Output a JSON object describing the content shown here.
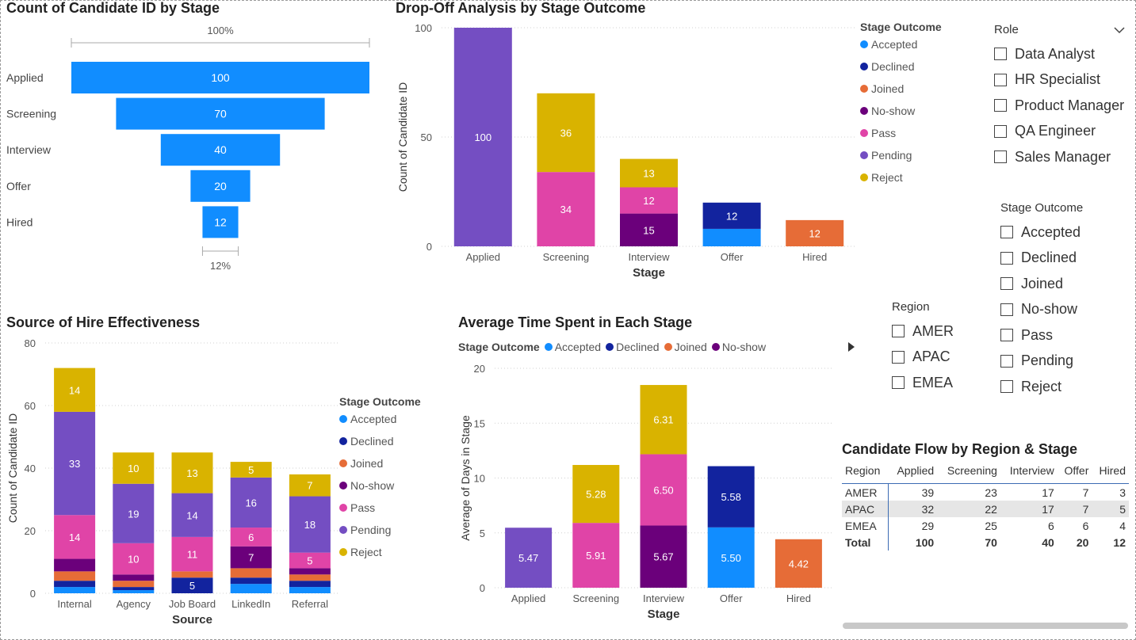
{
  "colors": {
    "Accepted": "#118DFF",
    "Declined": "#12239E",
    "Joined": "#E66C37",
    "No-show": "#6B007B",
    "Pass": "#E044A7",
    "Pending": "#744EC2",
    "Reject": "#D9B300",
    "funnel": "#118DFF"
  },
  "funnel": {
    "title": "Count of Candidate ID by Stage",
    "top_pct": "100%",
    "bottom_pct": "12%",
    "stages": [
      "Applied",
      "Screening",
      "Interview",
      "Offer",
      "Hired"
    ],
    "values": [
      100,
      70,
      40,
      20,
      12
    ]
  },
  "legend": {
    "title": "Stage Outcome",
    "items": [
      "Accepted",
      "Declined",
      "Joined",
      "No-show",
      "Pass",
      "Pending",
      "Reject"
    ]
  },
  "slicers": {
    "role": {
      "title": "Role",
      "options": [
        "Data Analyst",
        "HR Specialist",
        "Product Manager",
        "QA Engineer",
        "Sales Manager"
      ]
    },
    "stage_outcome": {
      "title": "Stage Outcome",
      "options": [
        "Accepted",
        "Declined",
        "Joined",
        "No-show",
        "Pass",
        "Pending",
        "Reject"
      ]
    },
    "region": {
      "title": "Region",
      "options": [
        "AMER",
        "APAC",
        "EMEA"
      ]
    }
  },
  "chart_data": [
    {
      "type": "bar",
      "stacked": true,
      "title": "Drop-Off Analysis by Stage Outcome",
      "xlabel": "Stage",
      "ylabel": "Count of Candidate ID",
      "ylim": [
        0,
        100
      ],
      "yticks": [
        0,
        50,
        100
      ],
      "categories": [
        "Applied",
        "Screening",
        "Interview",
        "Offer",
        "Hired"
      ],
      "series": [
        {
          "name": "Accepted",
          "values": [
            0,
            0,
            0,
            8,
            0
          ],
          "labels": [
            "",
            "",
            "",
            "",
            ""
          ]
        },
        {
          "name": "Declined",
          "values": [
            0,
            0,
            0,
            12,
            0
          ],
          "labels": [
            "",
            "",
            "",
            "12",
            ""
          ]
        },
        {
          "name": "Joined",
          "values": [
            0,
            0,
            0,
            0,
            12
          ],
          "labels": [
            "",
            "",
            "",
            "",
            "12"
          ]
        },
        {
          "name": "No-show",
          "values": [
            0,
            0,
            15,
            0,
            0
          ],
          "labels": [
            "",
            "",
            "15",
            "",
            ""
          ]
        },
        {
          "name": "Pass",
          "values": [
            0,
            34,
            12,
            0,
            0
          ],
          "labels": [
            "",
            "34",
            "12",
            "",
            ""
          ]
        },
        {
          "name": "Pending",
          "values": [
            100,
            0,
            0,
            0,
            0
          ],
          "labels": [
            "100",
            "",
            "",
            "",
            ""
          ]
        },
        {
          "name": "Reject",
          "values": [
            0,
            36,
            13,
            0,
            0
          ],
          "labels": [
            "",
            "36",
            "13",
            "",
            ""
          ]
        }
      ],
      "legend": "right"
    },
    {
      "type": "bar",
      "stacked": true,
      "title": "Source of Hire Effectiveness",
      "xlabel": "Source",
      "ylabel": "Count of Candidate ID",
      "ylim": [
        0,
        80
      ],
      "yticks": [
        0,
        20,
        40,
        60,
        80
      ],
      "categories": [
        "Internal",
        "Agency",
        "Job Board",
        "LinkedIn",
        "Referral"
      ],
      "series": [
        {
          "name": "Accepted",
          "values": [
            2,
            1,
            0,
            3,
            2
          ],
          "labels": [
            "",
            "",
            "",
            "",
            ""
          ]
        },
        {
          "name": "Declined",
          "values": [
            2,
            1,
            5,
            2,
            2
          ],
          "labels": [
            "",
            "",
            "5",
            "",
            ""
          ]
        },
        {
          "name": "Joined",
          "values": [
            3,
            2,
            2,
            3,
            2
          ],
          "labels": [
            "",
            "",
            "",
            "",
            ""
          ]
        },
        {
          "name": "No-show",
          "values": [
            4,
            2,
            0,
            7,
            2
          ],
          "labels": [
            "",
            "",
            "",
            "7",
            ""
          ]
        },
        {
          "name": "Pass",
          "values": [
            14,
            10,
            11,
            6,
            5
          ],
          "labels": [
            "14",
            "10",
            "11",
            "6",
            "5"
          ]
        },
        {
          "name": "Pending",
          "values": [
            33,
            19,
            14,
            16,
            18
          ],
          "labels": [
            "33",
            "19",
            "14",
            "16",
            "18"
          ]
        },
        {
          "name": "Reject",
          "values": [
            14,
            10,
            13,
            5,
            7
          ],
          "labels": [
            "14",
            "10",
            "13",
            "5",
            "7"
          ]
        }
      ],
      "legend": "right"
    },
    {
      "type": "bar",
      "stacked": true,
      "title": "Average Time Spent in Each Stage",
      "xlabel": "Stage",
      "ylabel": "Average of Days in Stage",
      "ylim": [
        0,
        20
      ],
      "yticks": [
        0,
        5,
        10,
        15,
        20
      ],
      "categories": [
        "Applied",
        "Screening",
        "Interview",
        "Offer",
        "Hired"
      ],
      "series": [
        {
          "name": "Accepted",
          "values": [
            0,
            0,
            0,
            5.5,
            0
          ],
          "labels": [
            "",
            "",
            "",
            "5.50",
            ""
          ]
        },
        {
          "name": "Declined",
          "values": [
            0,
            0,
            0,
            5.58,
            0
          ],
          "labels": [
            "",
            "",
            "",
            "5.58",
            ""
          ]
        },
        {
          "name": "Joined",
          "values": [
            0,
            0,
            0,
            0,
            4.42
          ],
          "labels": [
            "",
            "",
            "",
            "",
            "4.42"
          ]
        },
        {
          "name": "No-show",
          "values": [
            0,
            0,
            5.67,
            0,
            0
          ],
          "labels": [
            "",
            "",
            "5.67",
            "",
            ""
          ]
        },
        {
          "name": "Pass",
          "values": [
            0,
            5.91,
            6.5,
            0,
            0
          ],
          "labels": [
            "",
            "5.91",
            "6.50",
            "",
            ""
          ]
        },
        {
          "name": "Pending",
          "values": [
            5.47,
            0,
            0,
            0,
            0
          ],
          "labels": [
            "5.47",
            "",
            "",
            "",
            ""
          ]
        },
        {
          "name": "Reject",
          "values": [
            0,
            5.28,
            6.31,
            0,
            0
          ],
          "labels": [
            "",
            "5.28",
            "6.31",
            "",
            ""
          ]
        }
      ],
      "legend": "top",
      "legend_visible": [
        "Accepted",
        "Declined",
        "Joined",
        "No-show"
      ]
    },
    {
      "type": "table",
      "title": "Candidate Flow by Region & Stage",
      "columns": [
        "Region",
        "Applied",
        "Screening",
        "Interview",
        "Offer",
        "Hired"
      ],
      "rows": [
        [
          "AMER",
          "39",
          "23",
          "17",
          "7",
          "3"
        ],
        [
          "APAC",
          "32",
          "22",
          "17",
          "7",
          "5"
        ],
        [
          "EMEA",
          "29",
          "25",
          "6",
          "6",
          "4"
        ]
      ],
      "total": [
        "Total",
        "100",
        "70",
        "40",
        "20",
        "12"
      ]
    }
  ]
}
